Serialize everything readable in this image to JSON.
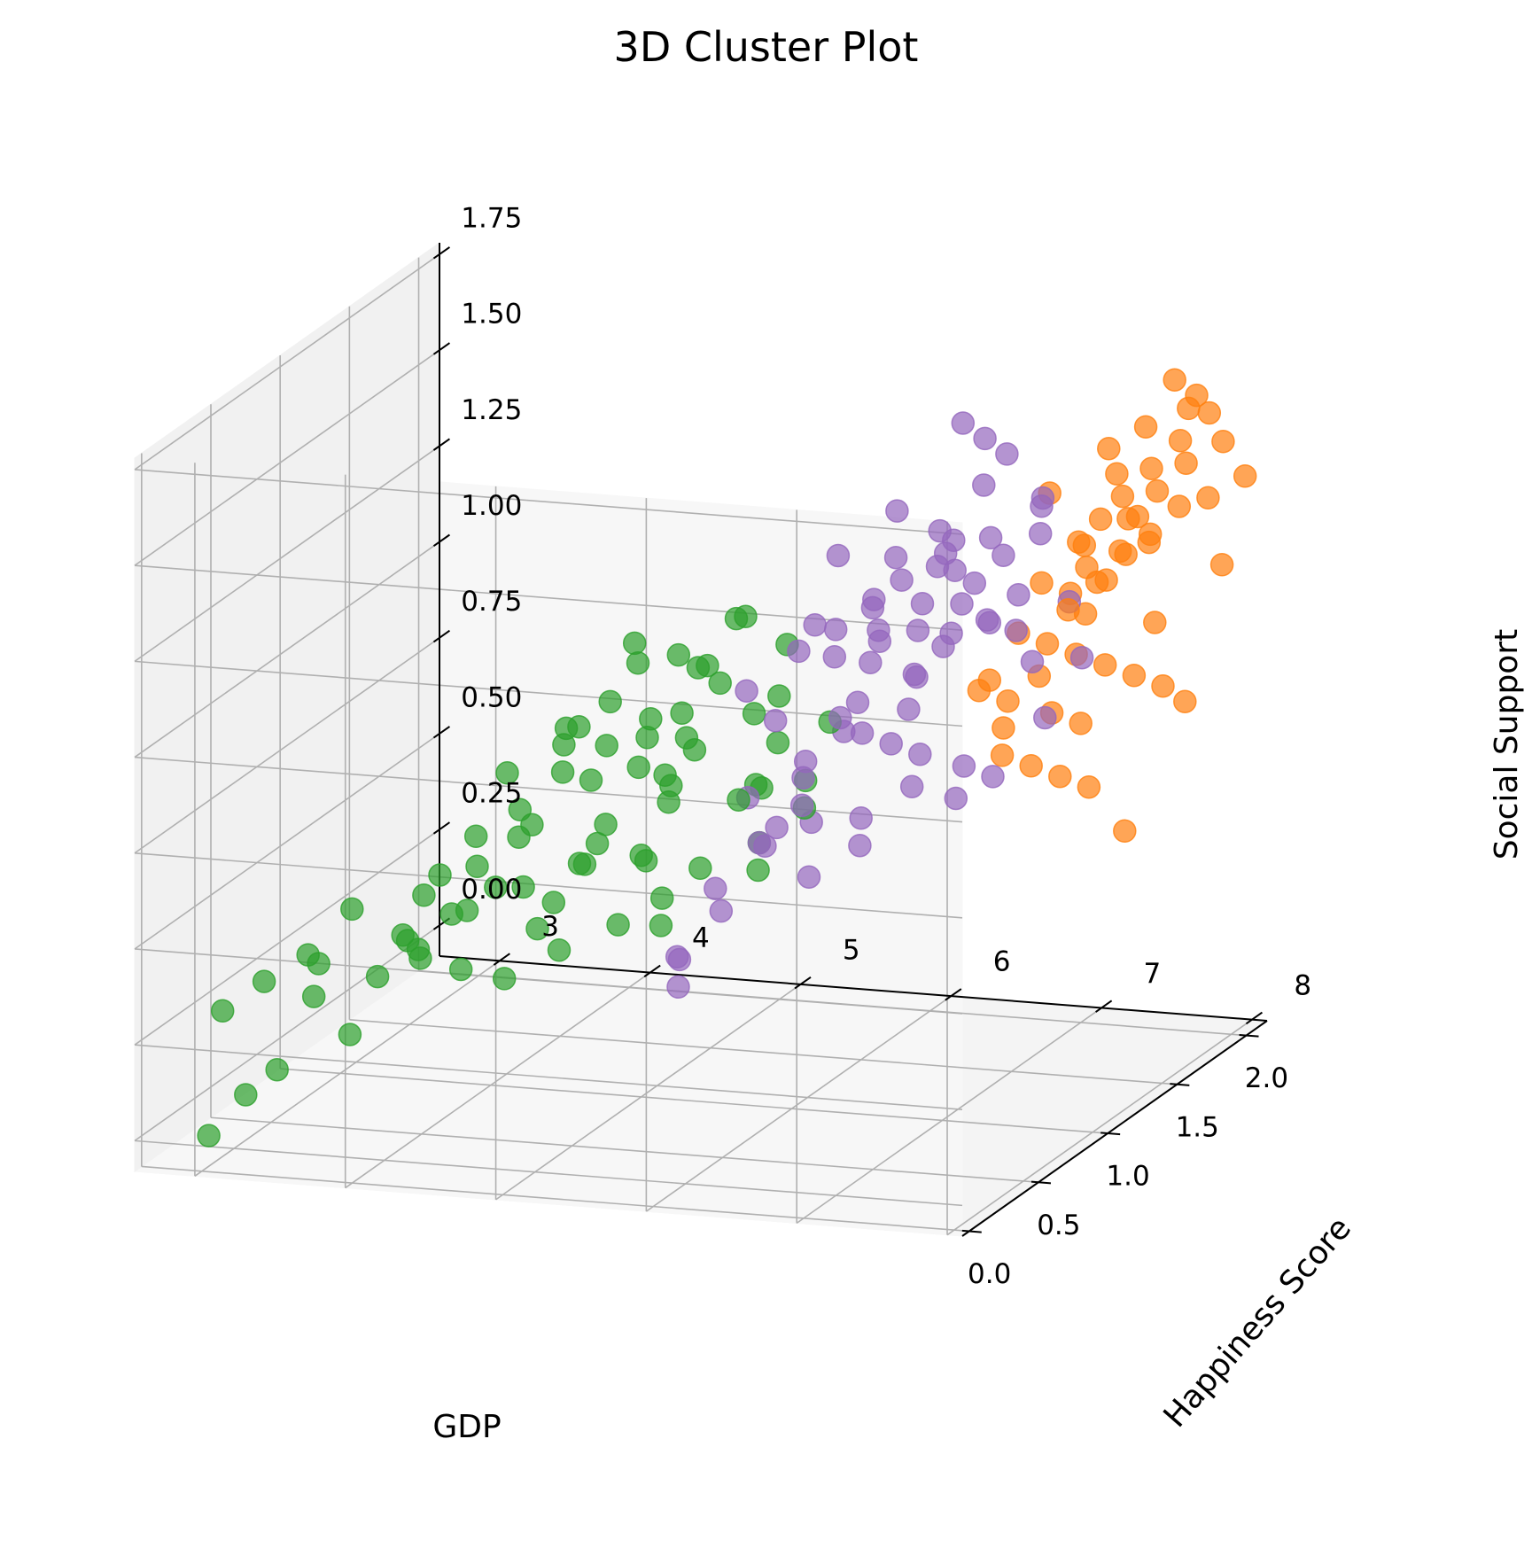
{
  "chart_data": {
    "type": "scatter",
    "projection": "3d",
    "title": "3D Cluster Plot",
    "xlabel": "GDP",
    "ylabel": "Happiness Score",
    "zlabel": "Social Support",
    "xlim": [
      -0.05,
      2.15
    ],
    "ylim": [
      2.6,
      8.1
    ],
    "zlim": [
      -0.08,
      1.78
    ],
    "xticks": [
      0.0,
      0.5,
      1.0,
      1.5,
      2.0
    ],
    "xtick_labels": [
      "0.0",
      "0.5",
      "1.0",
      "1.5",
      "2.0"
    ],
    "yticks": [
      3,
      4,
      5,
      6,
      7,
      8
    ],
    "ytick_labels": [
      "3",
      "4",
      "5",
      "6",
      "7",
      "8"
    ],
    "zticks": [
      0.0,
      0.25,
      0.5,
      0.75,
      1.0,
      1.25,
      1.5,
      1.75
    ],
    "ztick_labels": [
      "0.00",
      "0.25",
      "0.50",
      "0.75",
      "1.00",
      "1.25",
      "1.50",
      "1.75"
    ],
    "grid": true,
    "marker_alpha": 0.7,
    "series": [
      {
        "color": "#2ca02c",
        "points": [
          [
            0.05,
            3.0,
            0.0
          ],
          [
            0.1,
            3.2,
            0.1
          ],
          [
            0.15,
            3.0,
            0.3
          ],
          [
            0.0,
            3.5,
            0.2
          ],
          [
            0.2,
            3.8,
            0.25
          ],
          [
            0.3,
            3.5,
            0.4
          ],
          [
            0.45,
            3.0,
            0.3
          ],
          [
            0.55,
            3.2,
            0.35
          ],
          [
            0.65,
            3.4,
            0.45
          ],
          [
            0.7,
            3.1,
            0.2
          ],
          [
            0.8,
            3.6,
            0.35
          ],
          [
            0.85,
            3.8,
            0.5
          ],
          [
            0.4,
            4.0,
            0.45
          ],
          [
            0.5,
            4.2,
            0.5
          ],
          [
            0.6,
            4.4,
            0.55
          ],
          [
            0.3,
            4.2,
            0.6
          ],
          [
            0.35,
            4.5,
            0.75
          ],
          [
            0.45,
            4.7,
            0.8
          ],
          [
            0.55,
            4.6,
            0.7
          ],
          [
            0.65,
            4.8,
            0.85
          ],
          [
            0.75,
            5.0,
            0.9
          ],
          [
            0.25,
            4.8,
            0.95
          ],
          [
            0.35,
            5.1,
            1.05
          ],
          [
            0.45,
            5.3,
            1.1
          ],
          [
            0.55,
            5.0,
            1.0
          ],
          [
            0.65,
            5.3,
            1.15
          ],
          [
            0.75,
            5.5,
            1.0
          ],
          [
            0.85,
            5.2,
            0.95
          ],
          [
            0.95,
            5.4,
            0.85
          ],
          [
            1.05,
            5.6,
            0.7
          ],
          [
            0.9,
            4.8,
            0.6
          ],
          [
            1.0,
            5.0,
            0.55
          ],
          [
            1.1,
            5.3,
            0.5
          ],
          [
            0.3,
            5.6,
            1.3
          ],
          [
            0.4,
            5.8,
            1.25
          ],
          [
            0.5,
            5.9,
            1.2
          ],
          [
            0.6,
            6.0,
            1.3
          ],
          [
            0.7,
            5.8,
            1.1
          ],
          [
            0.8,
            6.1,
            1.05
          ],
          [
            0.2,
            5.5,
            0.85
          ],
          [
            0.15,
            5.2,
            0.65
          ],
          [
            0.25,
            5.0,
            0.55
          ],
          [
            0.35,
            4.4,
            0.4
          ],
          [
            0.95,
            4.5,
            0.3
          ],
          [
            1.05,
            4.8,
            0.35
          ],
          [
            1.15,
            5.0,
            0.4
          ],
          [
            1.2,
            5.6,
            0.55
          ],
          [
            1.0,
            5.8,
            0.75
          ],
          [
            0.9,
            6.0,
            0.9
          ],
          [
            0.6,
            5.4,
            0.65
          ],
          [
            0.7,
            4.9,
            0.6
          ],
          [
            0.8,
            4.4,
            0.5
          ],
          [
            0.4,
            3.8,
            0.35
          ],
          [
            0.55,
            4.9,
            0.95
          ],
          [
            0.5,
            5.5,
            1.0
          ],
          [
            0.65,
            5.7,
            1.15
          ],
          [
            0.75,
            6.2,
            1.2
          ],
          [
            0.85,
            5.9,
            0.8
          ],
          [
            0.95,
            6.3,
            0.95
          ],
          [
            1.1,
            6.0,
            0.75
          ],
          [
            1.2,
            5.9,
            0.65
          ],
          [
            0.45,
            6.2,
            1.35
          ],
          [
            0.35,
            5.9,
            1.05
          ],
          [
            0.25,
            4.6,
            0.7
          ],
          [
            0.15,
            4.3,
            0.5
          ],
          [
            1.3,
            5.5,
            0.45
          ],
          [
            1.25,
            4.9,
            0.3
          ],
          [
            0.6,
            3.9,
            0.35
          ],
          [
            0.72,
            4.1,
            0.45
          ],
          [
            0.88,
            4.7,
            0.55
          ],
          [
            0.42,
            5.2,
            0.9
          ],
          [
            0.52,
            5.6,
            0.9
          ],
          [
            0.62,
            6.1,
            1.05
          ],
          [
            0.78,
            5.4,
            0.8
          ],
          [
            0.98,
            5.2,
            0.7
          ],
          [
            0.32,
            4.9,
            0.8
          ],
          [
            0.22,
            5.7,
            1.0
          ],
          [
            0.12,
            4.9,
            0.45
          ]
        ]
      },
      {
        "color": "#9467bd",
        "points": [
          [
            1.0,
            5.7,
            1.0
          ],
          [
            1.05,
            6.0,
            1.1
          ],
          [
            1.1,
            6.2,
            1.15
          ],
          [
            1.15,
            6.4,
            1.2
          ],
          [
            1.2,
            6.1,
            1.05
          ],
          [
            1.25,
            6.5,
            1.25
          ],
          [
            1.3,
            6.3,
            1.1
          ],
          [
            1.35,
            6.7,
            1.3
          ],
          [
            1.4,
            6.5,
            1.15
          ],
          [
            1.45,
            6.8,
            1.2
          ],
          [
            1.5,
            6.6,
            1.05
          ],
          [
            1.55,
            6.9,
            1.25
          ],
          [
            1.1,
            6.6,
            1.35
          ],
          [
            1.2,
            6.8,
            1.4
          ],
          [
            1.3,
            7.0,
            1.5
          ],
          [
            1.25,
            7.2,
            1.6
          ],
          [
            1.15,
            7.0,
            1.7
          ],
          [
            1.2,
            7.1,
            1.65
          ],
          [
            1.35,
            6.0,
            0.85
          ],
          [
            1.4,
            6.1,
            0.8
          ],
          [
            1.5,
            6.2,
            0.75
          ],
          [
            1.6,
            6.3,
            0.7
          ],
          [
            1.7,
            6.5,
            0.65
          ],
          [
            1.8,
            6.6,
            0.6
          ],
          [
            1.3,
            5.8,
            0.7
          ],
          [
            1.4,
            5.7,
            0.6
          ],
          [
            1.2,
            5.6,
            0.55
          ],
          [
            1.1,
            5.4,
            0.45
          ],
          [
            1.25,
            5.3,
            0.35
          ],
          [
            1.15,
            5.1,
            0.25
          ],
          [
            1.05,
            5.2,
            0.2
          ],
          [
            0.95,
            5.3,
            0.3
          ],
          [
            1.45,
            6.4,
            0.95
          ],
          [
            1.55,
            6.5,
            1.0
          ],
          [
            1.65,
            6.7,
            1.05
          ],
          [
            1.75,
            6.8,
            1.0
          ],
          [
            1.6,
            7.1,
            1.3
          ],
          [
            1.5,
            7.2,
            1.4
          ],
          [
            1.4,
            7.3,
            1.45
          ],
          [
            1.35,
            7.0,
            1.35
          ],
          [
            1.25,
            6.6,
            1.0
          ],
          [
            1.15,
            6.3,
            0.95
          ],
          [
            1.05,
            6.5,
            1.25
          ],
          [
            0.95,
            6.2,
            1.2
          ],
          [
            0.9,
            6.4,
            1.4
          ],
          [
            1.0,
            6.7,
            1.5
          ],
          [
            1.2,
            6.9,
            1.3
          ],
          [
            1.3,
            6.5,
            0.9
          ],
          [
            1.45,
            6.9,
            1.1
          ],
          [
            1.55,
            7.0,
            1.15
          ],
          [
            1.65,
            7.0,
            0.95
          ],
          [
            1.7,
            7.2,
            1.1
          ],
          [
            1.85,
            6.9,
            0.75
          ],
          [
            1.75,
            6.4,
            0.55
          ],
          [
            1.6,
            5.9,
            0.45
          ],
          [
            1.45,
            5.7,
            0.4
          ],
          [
            1.35,
            5.5,
            0.5
          ],
          [
            1.25,
            5.9,
            0.6
          ],
          [
            1.1,
            6.0,
            0.8
          ],
          [
            1.0,
            5.9,
            0.65
          ],
          [
            0.9,
            5.8,
            0.75
          ],
          [
            1.05,
            6.3,
            0.9
          ],
          [
            1.15,
            6.7,
            1.15
          ],
          [
            1.25,
            6.9,
            1.2
          ],
          [
            1.35,
            6.2,
            1.0
          ],
          [
            1.5,
            6.0,
            0.55
          ],
          [
            1.9,
            7.1,
            0.9
          ],
          [
            1.65,
            6.2,
            0.6
          ],
          [
            1.4,
            6.6,
            1.25
          ],
          [
            1.3,
            6.8,
            1.35
          ],
          [
            1.2,
            6.4,
            1.1
          ],
          [
            1.1,
            5.8,
            0.9
          ]
        ]
      },
      {
        "color": "#ff7f0e",
        "points": [
          [
            1.5,
            7.2,
            1.2
          ],
          [
            1.55,
            7.4,
            1.3
          ],
          [
            1.6,
            7.5,
            1.35
          ],
          [
            1.65,
            7.6,
            1.4
          ],
          [
            1.7,
            7.3,
            1.25
          ],
          [
            1.75,
            7.7,
            1.45
          ],
          [
            1.8,
            7.5,
            1.3
          ],
          [
            1.85,
            7.8,
            1.5
          ],
          [
            1.9,
            7.6,
            1.35
          ],
          [
            1.95,
            7.9,
            1.55
          ],
          [
            2.0,
            7.7,
            1.4
          ],
          [
            2.05,
            7.8,
            1.3
          ],
          [
            1.6,
            7.8,
            1.6
          ],
          [
            1.7,
            7.9,
            1.7
          ],
          [
            1.75,
            8.0,
            1.65
          ],
          [
            1.8,
            7.9,
            1.6
          ],
          [
            1.55,
            7.6,
            1.55
          ],
          [
            1.45,
            7.3,
            1.45
          ],
          [
            1.65,
            7.1,
            1.0
          ],
          [
            1.75,
            7.2,
            0.95
          ],
          [
            1.85,
            7.3,
            0.9
          ],
          [
            1.95,
            7.4,
            0.85
          ],
          [
            2.05,
            7.5,
            0.8
          ],
          [
            2.1,
            7.6,
            0.75
          ],
          [
            1.55,
            6.9,
            0.8
          ],
          [
            1.65,
            6.8,
            0.7
          ],
          [
            1.75,
            6.9,
            0.65
          ],
          [
            1.85,
            7.0,
            0.6
          ],
          [
            1.95,
            7.1,
            0.55
          ],
          [
            2.1,
            7.2,
            0.4
          ],
          [
            1.9,
            7.2,
            1.1
          ],
          [
            2.0,
            7.3,
            1.15
          ],
          [
            1.8,
            7.1,
            1.05
          ],
          [
            1.7,
            7.0,
            0.9
          ],
          [
            1.6,
            7.4,
            1.1
          ],
          [
            1.5,
            7.5,
            1.25
          ],
          [
            2.05,
            7.9,
            1.45
          ],
          [
            2.1,
            8.0,
            1.35
          ],
          [
            1.95,
            7.5,
            1.2
          ],
          [
            1.85,
            7.6,
            1.25
          ],
          [
            1.75,
            7.4,
            1.15
          ],
          [
            1.65,
            7.7,
            1.35
          ],
          [
            1.55,
            7.0,
            1.05
          ],
          [
            1.45,
            6.9,
            0.95
          ],
          [
            2.15,
            7.8,
            1.1
          ],
          [
            2.0,
            7.0,
            0.7
          ],
          [
            1.9,
            6.9,
            0.75
          ],
          [
            1.8,
            6.7,
            0.8
          ],
          [
            1.7,
            6.6,
            0.85
          ],
          [
            1.6,
            7.3,
            1.15
          ],
          [
            1.5,
            7.7,
            1.5
          ],
          [
            2.1,
            7.4,
            0.95
          ],
          [
            1.95,
            7.7,
            1.3
          ],
          [
            1.85,
            7.4,
            1.2
          ]
        ]
      }
    ]
  }
}
